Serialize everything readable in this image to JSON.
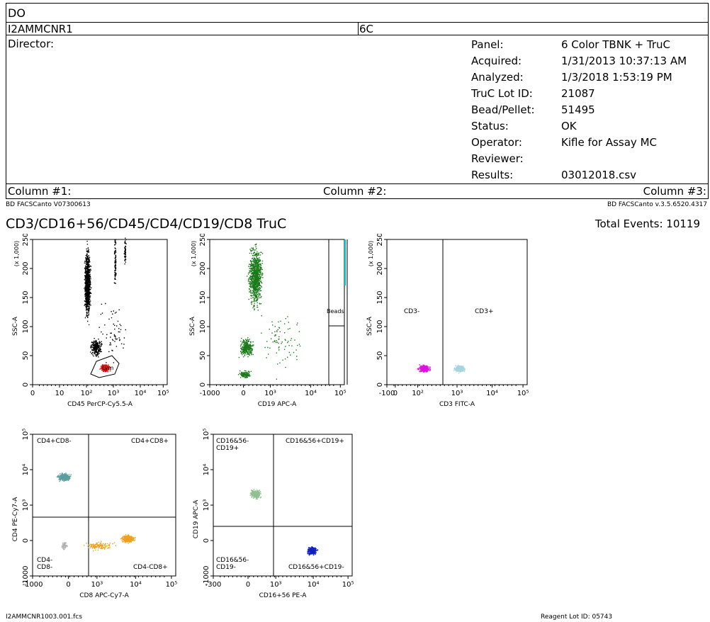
{
  "header": {
    "name": "DO",
    "id": "I2AMMCNR1",
    "code": "6C",
    "director_label": "Director:",
    "info": [
      {
        "k": "Panel:",
        "v": "6 Color TBNK + TruC"
      },
      {
        "k": "Acquired:",
        "v": "1/31/2013 10:37:13 AM"
      },
      {
        "k": "Analyzed:",
        "v": "1/3/2018 1:53:19 PM"
      },
      {
        "k": "TruC Lot ID:",
        "v": "21087"
      },
      {
        "k": "Bead/Pellet:",
        "v": "51495"
      },
      {
        "k": "Status:",
        "v": "OK"
      },
      {
        "k": "Operator:",
        "v": "Kifle for Assay MC"
      },
      {
        "k": "Reviewer:",
        "v": ""
      },
      {
        "k": "Results:",
        "v": "03012018.csv"
      }
    ],
    "col1": "Column #1:",
    "col2": "Column #2:",
    "col3": "Column #3:"
  },
  "instrument_left": "BD FACSCanto V07300613",
  "instrument_right": "BD FACSCanto  v.3.5.6520.4317",
  "panel_title": "CD3/CD16+56/CD45/CD4/CD19/CD8 TruC",
  "total_events": "Total Events: 10119",
  "footer_file": "I2AMMCNR1003.001.fcs",
  "footer_reagent": "Reagent Lot ID: 05743",
  "colors": {
    "lymph": "#e01010",
    "debris": "#000000",
    "cd19": "#1a7a1a",
    "cd3neg": "#e010e0",
    "cd3pos": "#a8d4e0",
    "cd4": "#5b9ea0",
    "cd8": "#f0a020",
    "cd4cd8neg": "#b0b0b0",
    "nk": "#1020c0",
    "bcell": "#90c090",
    "beads": "#00c8d8"
  },
  "chart_data": [
    {
      "type": "scatter",
      "xlabel": "CD45 PerCP-Cy5.5-A",
      "ylabel": "SSC-A",
      "yunit": "(x 1,000)",
      "xticks": [
        "0",
        "10",
        "10²",
        "10³",
        "10⁴",
        "10⁵"
      ],
      "yticks": [
        "0",
        "50",
        "100",
        "150",
        "200",
        "250"
      ],
      "gate_label": "Lym"
    },
    {
      "type": "scatter",
      "xlabel": "CD19 APC-A",
      "ylabel": "SSC-A",
      "yunit": "(x 1,000)",
      "xticks": [
        "-1000",
        "0",
        "10³",
        "10⁴",
        "10⁵"
      ],
      "yticks": [
        "0",
        "50",
        "100",
        "150",
        "200",
        "250"
      ],
      "gate_label": "Beads"
    },
    {
      "type": "scatter",
      "xlabel": "CD3 FITC-A",
      "ylabel": "SSC-A",
      "yunit": "(x 1,000)",
      "xticks": [
        "-100",
        "0",
        "10²",
        "10³",
        "10⁴",
        "10⁵"
      ],
      "yticks": [
        "0",
        "50",
        "100",
        "150",
        "200",
        "250"
      ],
      "quadrants": [
        "CD3-",
        "CD3+"
      ]
    },
    {
      "type": "scatter",
      "xlabel": "CD8 APC-Cy7-A",
      "ylabel": "CD4 PE-Cy7-A",
      "xticks": [
        "-1000",
        "0",
        "10³",
        "10⁴",
        "10⁵"
      ],
      "yticks": [
        "-1000",
        "0",
        "10³",
        "10⁴",
        "10⁵"
      ],
      "quadrants": [
        "CD4+CD8-",
        "CD4+CD8+",
        "CD4-\nCD8-",
        "CD4-CD8+"
      ]
    },
    {
      "type": "scatter",
      "xlabel": "CD16+56 PE-A",
      "ylabel": "CD19 APC-A",
      "xticks": [
        "-300",
        "0",
        "10³",
        "10⁴",
        "10⁵"
      ],
      "yticks": [
        "-1000",
        "0",
        "10³",
        "10⁴",
        "10⁵"
      ],
      "quadrants": [
        "CD16&56-\nCD19+",
        "CD16&56+CD19+",
        "CD16&56-\nCD19-",
        "CD16&56+CD19-"
      ]
    }
  ]
}
